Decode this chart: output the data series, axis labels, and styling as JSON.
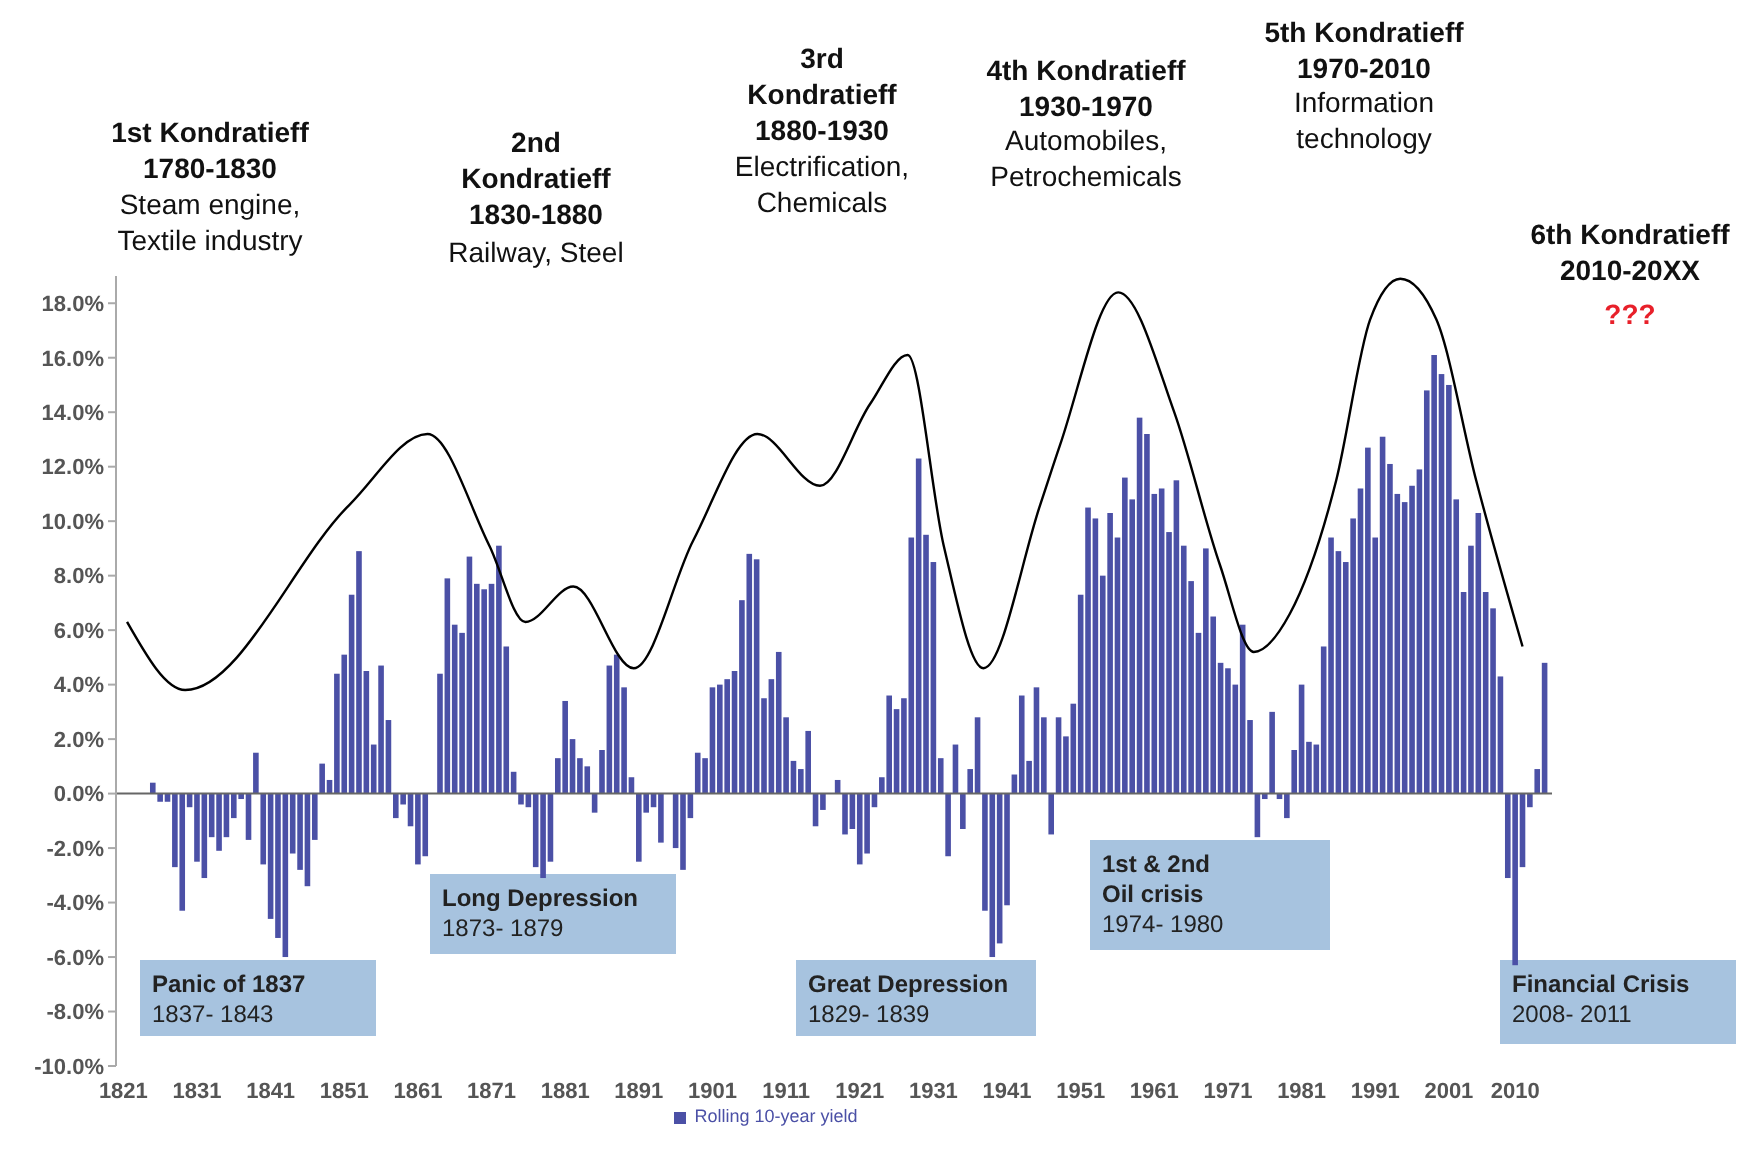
{
  "chart_data": {
    "type": "bar",
    "annotations": [
      "1st Kondratieff\n1780-1830",
      "Steam engine,\nTextile industry",
      "2nd\nKondratieff\n1830-1880",
      "Railway, Steel",
      "3rd\nKondratieff\n1880-1930",
      "Electrification,\nChemicals",
      "4th Kondratieff\n1930-1970",
      "Automobiles,\nPetrochemicals",
      "5th Kondratieff\n1970-2010",
      "Information\ntechnology",
      "6th Kondratieff\n2010-20XX",
      "???",
      "Panic of 1837",
      "1837- 1843",
      "Long Depression",
      "1873- 1879",
      "Great Depression",
      "1829- 1839",
      "1st & 2nd\nOil crisis",
      "1974- 1980",
      "Financial Crisis",
      "2008- 2011"
    ],
    "series": [
      {
        "name": "Rolling 10-year yield",
        "color": "#4b50a6",
        "x": [
          1825,
          1826,
          1827,
          1828,
          1829,
          1830,
          1831,
          1832,
          1833,
          1834,
          1835,
          1836,
          1837,
          1838,
          1839,
          1840,
          1841,
          1842,
          1843,
          1844,
          1845,
          1846,
          1847,
          1848,
          1849,
          1850,
          1851,
          1852,
          1853,
          1854,
          1855,
          1856,
          1857,
          1858,
          1859,
          1860,
          1861,
          1862,
          1863,
          1864,
          1865,
          1866,
          1867,
          1868,
          1869,
          1870,
          1871,
          1872,
          1873,
          1874,
          1875,
          1876,
          1877,
          1878,
          1879,
          1880,
          1881,
          1882,
          1883,
          1884,
          1885,
          1886,
          1887,
          1888,
          1889,
          1890,
          1891,
          1892,
          1893,
          1894,
          1895,
          1896,
          1897,
          1898,
          1899,
          1900,
          1901,
          1902,
          1903,
          1904,
          1905,
          1906,
          1907,
          1908,
          1909,
          1910,
          1911,
          1912,
          1913,
          1914,
          1915,
          1916,
          1917,
          1918,
          1919,
          1920,
          1921,
          1922,
          1923,
          1924,
          1925,
          1926,
          1927,
          1928,
          1929,
          1930,
          1931,
          1932,
          1933,
          1934,
          1935,
          1936,
          1937,
          1938,
          1939,
          1940,
          1941,
          1942,
          1943,
          1944,
          1945,
          1946,
          1947,
          1948,
          1949,
          1950,
          1951,
          1952,
          1953,
          1954,
          1955,
          1956,
          1957,
          1958,
          1959,
          1960,
          1961,
          1962,
          1963,
          1964,
          1965,
          1966,
          1967,
          1968,
          1969,
          1970,
          1971,
          1972,
          1973,
          1974,
          1975,
          1976,
          1977,
          1978,
          1979,
          1980,
          1981,
          1982,
          1983,
          1984,
          1985,
          1986,
          1987,
          1988,
          1989,
          1990,
          1991,
          1992,
          1993,
          1994,
          1995,
          1996,
          1997,
          1998,
          1999,
          2000,
          2001,
          2002,
          2003,
          2004,
          2005,
          2006,
          2007,
          2008,
          2009,
          2010,
          2011,
          2012,
          2013,
          2014
        ],
        "values": [
          0.4,
          -0.3,
          -0.3,
          -2.7,
          -4.3,
          -0.5,
          -2.5,
          -3.1,
          -1.6,
          -2.1,
          -1.6,
          -0.9,
          -0.2,
          -1.7,
          1.5,
          -2.6,
          -4.6,
          -5.3,
          -6.0,
          -2.2,
          -2.8,
          -3.4,
          -1.7,
          1.1,
          0.5,
          4.4,
          5.1,
          7.3,
          8.9,
          4.5,
          1.8,
          4.7,
          2.7,
          -0.9,
          -0.4,
          -1.2,
          -2.6,
          -2.3,
          0,
          4.4,
          7.9,
          6.2,
          5.9,
          8.7,
          7.7,
          7.5,
          7.7,
          9.1,
          5.4,
          0.8,
          -0.4,
          -0.5,
          -2.7,
          -3.1,
          -2.5,
          1.3,
          3.4,
          2.0,
          1.3,
          1.0,
          -0.7,
          1.6,
          4.7,
          5.1,
          3.9,
          0.6,
          -2.5,
          -0.7,
          -0.5,
          -1.8,
          0,
          -2.0,
          -2.8,
          -0.9,
          1.5,
          1.3,
          3.9,
          4.0,
          4.2,
          4.5,
          7.1,
          8.8,
          8.6,
          3.5,
          4.2,
          5.2,
          2.8,
          1.2,
          0.9,
          2.3,
          -1.2,
          -0.6,
          0,
          0.5,
          -1.5,
          -1.3,
          -2.6,
          -2.2,
          -0.5,
          0.6,
          3.6,
          3.1,
          3.5,
          9.4,
          12.3,
          9.5,
          8.5,
          1.3,
          -2.3,
          1.8,
          -1.3,
          0.9,
          2.8,
          -4.3,
          -6.0,
          -5.5,
          -4.1,
          0.7,
          3.6,
          1.2,
          3.9,
          2.8,
          -1.5,
          2.8,
          2.1,
          3.3,
          7.3,
          10.5,
          10.1,
          8.0,
          10.3,
          9.4,
          11.6,
          10.8,
          13.8,
          13.2,
          11.0,
          11.2,
          9.6,
          11.5,
          9.1,
          7.8,
          5.9,
          9.0,
          6.5,
          4.8,
          4.6,
          4.0,
          6.2,
          2.7,
          -1.6,
          -0.2,
          3.0,
          -0.2,
          -0.9,
          1.6,
          4.0,
          1.9,
          1.8,
          5.4,
          9.4,
          8.9,
          8.5,
          10.1,
          11.2,
          12.7,
          9.4,
          13.1,
          12.1,
          11.0,
          10.7,
          11.3,
          11.9,
          14.8,
          16.1,
          15.4,
          15.0,
          10.8,
          7.4,
          9.1,
          10.3,
          7.4,
          6.8,
          4.3,
          -3.1,
          -6.3,
          -2.7,
          -0.5,
          0.9,
          4.8
        ]
      },
      {
        "type": "line",
        "color": "#000000",
        "x": [
          1821.5,
          1829.4,
          1851.7,
          1862.3,
          1870.7,
          1875.6,
          1882.1,
          1890.3,
          1898.4,
          1907.1,
          1915.6,
          1922.4,
          1927.5,
          1932.4,
          1937.8,
          1945.5,
          1948.2,
          1956.1,
          1963.7,
          1969.9,
          1974.5,
          1979.4,
          1985.7,
          1990.3,
          1994.4,
          1999.3,
          2004.7,
          2011
        ],
        "values": [
          6.3,
          3.8,
          10.6,
          13.2,
          9.1,
          6.3,
          7.6,
          4.6,
          9.3,
          13.2,
          11.3,
          14.3,
          16.1,
          9.1,
          4.6,
          10.6,
          12.8,
          18.4,
          14.0,
          8.4,
          5.2,
          6.6,
          11.5,
          17.4,
          18.9,
          17.4,
          11.5,
          5.4
        ]
      }
    ],
    "xlim": [
      1820,
      2015
    ],
    "xticks": [
      1821,
      1831,
      1841,
      1851,
      1861,
      1871,
      1881,
      1891,
      1901,
      1911,
      1921,
      1931,
      1941,
      1951,
      1961,
      1971,
      1981,
      1991,
      2001,
      2010
    ],
    "ylim": [
      -10,
      19
    ],
    "yticks": [
      {
        "value": -10,
        "label": "-10.0%"
      },
      {
        "value": -8,
        "label": "-8.0%"
      },
      {
        "value": -6,
        "label": "-6.0%"
      },
      {
        "value": -4,
        "label": "-4.0%"
      },
      {
        "value": -2,
        "label": "-2.0%"
      },
      {
        "value": 0,
        "label": "0.0%"
      },
      {
        "value": 2,
        "label": "2.0%"
      },
      {
        "value": 4,
        "label": "4.0%"
      },
      {
        "value": 6,
        "label": "6.0%"
      },
      {
        "value": 8,
        "label": "8.0%"
      },
      {
        "value": 10,
        "label": "10.0%"
      },
      {
        "value": 12,
        "label": "12.0%"
      },
      {
        "value": 14,
        "label": "14.0%"
      },
      {
        "value": 16,
        "label": "16.0%"
      },
      {
        "value": 18,
        "label": "18.0%"
      }
    ],
    "ref_lines": [
      {
        "axis": "y",
        "value": 0,
        "color": "#666666"
      }
    ],
    "grid": false,
    "legend": "bottom"
  }
}
